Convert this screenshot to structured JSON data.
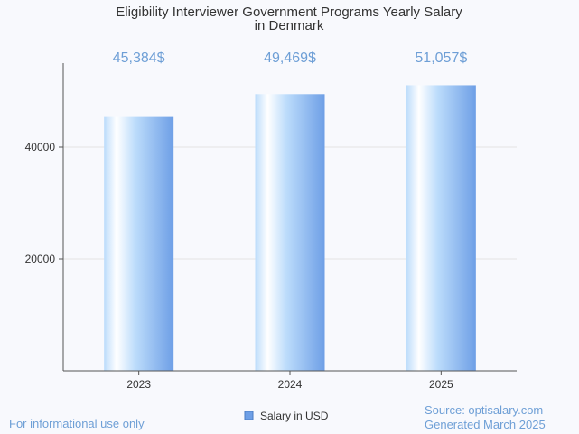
{
  "chart_data": {
    "type": "bar",
    "title_lines": [
      "Eligibility Interviewer Government Programs Yearly Salary",
      "in Denmark"
    ],
    "categories": [
      "2023",
      "2024",
      "2025"
    ],
    "series": [
      {
        "name": "Salary in USD",
        "values": [
          45384,
          49469,
          51057
        ]
      }
    ],
    "data_labels": [
      "45,384$",
      "49,469$",
      "51,057$"
    ],
    "y_ticks": [
      {
        "value": 20000,
        "label": "20000"
      },
      {
        "value": 40000,
        "label": "40000"
      }
    ],
    "ylim": [
      0,
      55000
    ],
    "grid": true,
    "legend_position": "bottom"
  },
  "footer": {
    "left": "For informational use only",
    "source": "Source: optisalary.com",
    "generated": "Generated March 2025"
  },
  "colors": {
    "bar_light": "#ffffff",
    "bar_mid": "#bcdcfb",
    "bar_dark": "#6e9fe6",
    "accent_text": "#6e9fd6",
    "axis": "#555555",
    "grid": "#e3e3e3"
  }
}
